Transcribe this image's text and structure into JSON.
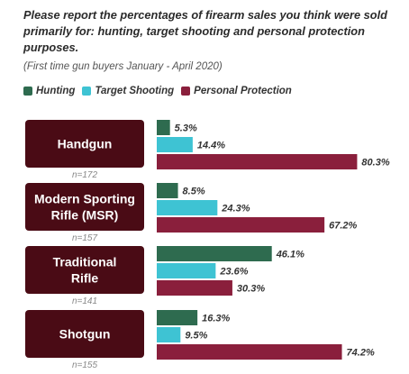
{
  "title": "Please report the percentages of firearm sales you think were sold primarily for: hunting, target shooting and personal protection purposes.",
  "subtitle": "(First time gun buyers January - April 2020)",
  "colors": {
    "hunting": "#2e6b4f",
    "target_shooting": "#3ec3d3",
    "personal_protection": "#8a1f3c",
    "category_box": "#4a0b15"
  },
  "chart_data": {
    "type": "bar",
    "orientation": "horizontal",
    "categories": [
      {
        "label": [
          "Handgun"
        ],
        "n": "n=172"
      },
      {
        "label": [
          "Modern Sporting",
          "Rifle (MSR)"
        ],
        "n": "n=157"
      },
      {
        "label": [
          "Traditional",
          "Rifle"
        ],
        "n": "n=141"
      },
      {
        "label": [
          "Shotgun"
        ],
        "n": "n=155"
      }
    ],
    "series": [
      {
        "name": "Hunting",
        "values": [
          5.3,
          8.5,
          46.1,
          16.3
        ],
        "labels": [
          "5.3%",
          "8.5%",
          "46.1%",
          "16.3%"
        ]
      },
      {
        "name": "Target Shooting",
        "values": [
          14.4,
          24.3,
          23.6,
          9.5
        ],
        "labels": [
          "14.4%",
          "24.3%",
          "23.6%",
          "9.5%"
        ]
      },
      {
        "name": "Personal Protection",
        "values": [
          80.3,
          67.2,
          30.3,
          74.2
        ],
        "labels": [
          "80.3%",
          "67.2%",
          "30.3%",
          "74.2%"
        ]
      }
    ],
    "legend_position": "top-left",
    "grid": false
  }
}
